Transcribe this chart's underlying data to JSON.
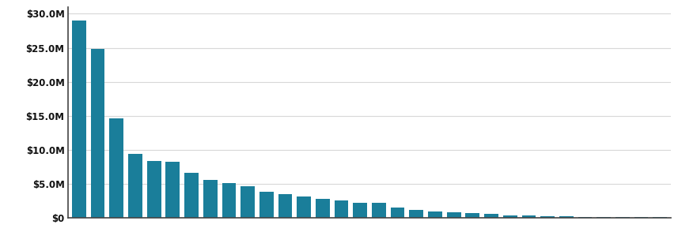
{
  "values": [
    29000000,
    24800000,
    14600000,
    9400000,
    8400000,
    8300000,
    6600000,
    5600000,
    5100000,
    4700000,
    3900000,
    3500000,
    3200000,
    2800000,
    2600000,
    2300000,
    2200000,
    1600000,
    1200000,
    1000000,
    900000,
    700000,
    600000,
    400000,
    350000,
    300000,
    250000,
    200000,
    175000,
    150000,
    120000,
    100000
  ],
  "bar_color": "#1a7e9a",
  "background_color": "#ffffff",
  "grid_color": "#d8d8d8",
  "ylim": [
    0,
    31000000
  ],
  "yticks": [
    0,
    5000000,
    10000000,
    15000000,
    20000000,
    25000000,
    30000000
  ],
  "ytick_labels": [
    "$0",
    "$5.0M",
    "$10.0M",
    "$15.0M",
    "$20.0M",
    "$25.0M",
    "$30.0M"
  ]
}
